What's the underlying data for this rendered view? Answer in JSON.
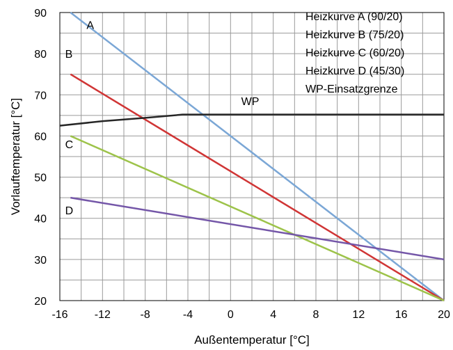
{
  "chart_data": {
    "type": "line",
    "xlabel": "Außentemperatur [°C]",
    "ylabel": "Vorlauftemperatur [°C]",
    "xlim": [
      -16,
      20
    ],
    "ylim": [
      20,
      90
    ],
    "xticks": [
      -16,
      -12,
      -8,
      -4,
      0,
      4,
      8,
      12,
      16,
      20
    ],
    "yticks": [
      20,
      30,
      40,
      50,
      60,
      70,
      80,
      90
    ],
    "x_minor_step": 2,
    "y_minor_step": 5,
    "grid": true,
    "legend_position": "top-right",
    "legend": [
      "Heizkurve A (90/20)",
      "Heizkurve B (75/20)",
      "Heizkurve C (60/20)",
      "Heizkurve D (45/30)",
      "WP-Einsatzgrenze"
    ],
    "series": [
      {
        "name": "A",
        "color": "#7ba7d6",
        "x": [
          -15,
          20
        ],
        "y": [
          90,
          20
        ],
        "label_at": [
          -13.5,
          86
        ]
      },
      {
        "name": "B",
        "color": "#d03535",
        "x": [
          -15,
          20
        ],
        "y": [
          75,
          20
        ],
        "label_at": [
          -15.5,
          79
        ]
      },
      {
        "name": "C",
        "color": "#9dc34a",
        "x": [
          -15,
          20
        ],
        "y": [
          60,
          20
        ],
        "label_at": [
          -15.5,
          57
        ]
      },
      {
        "name": "D",
        "color": "#7456a8",
        "x": [
          -15,
          20
        ],
        "y": [
          45,
          30
        ],
        "label_at": [
          -15.5,
          41
        ]
      },
      {
        "name": "WP",
        "color": "#262626",
        "x": [
          -16,
          -12,
          -8,
          -4.5,
          20
        ],
        "y": [
          62.5,
          63.6,
          64.4,
          65.2,
          65.2
        ],
        "label_at": [
          1,
          67.5
        ]
      }
    ]
  }
}
